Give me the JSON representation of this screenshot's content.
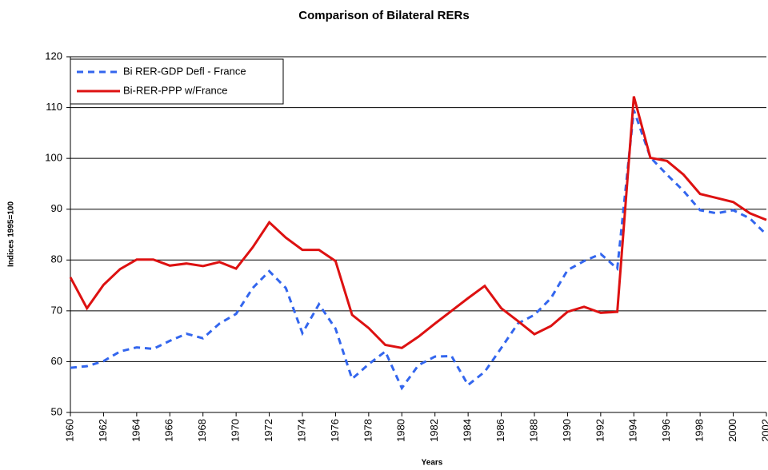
{
  "chart_data": {
    "type": "line",
    "title": "Comparison of Bilateral RERs",
    "x_label": "Years",
    "y_label": "Indices  1995=100",
    "x": [
      1960,
      1961,
      1962,
      1963,
      1964,
      1965,
      1966,
      1967,
      1968,
      1969,
      1970,
      1971,
      1972,
      1973,
      1974,
      1975,
      1976,
      1977,
      1978,
      1979,
      1980,
      1981,
      1982,
      1983,
      1984,
      1985,
      1986,
      1987,
      1988,
      1989,
      1990,
      1991,
      1992,
      1993,
      1994,
      1995,
      1996,
      1997,
      1998,
      1999,
      2000,
      2001,
      2002
    ],
    "series": [
      {
        "name": "Bi RER-GDP Defl - France",
        "color": "#3366ee",
        "dashed": true,
        "values": [
          58.8,
          59.1,
          60.1,
          62.0,
          62.8,
          62.5,
          64.1,
          65.5,
          64.6,
          67.5,
          69.4,
          74.5,
          77.8,
          74.5,
          65.6,
          71.3,
          66.5,
          56.6,
          59.5,
          62.0,
          54.8,
          59.3,
          61.0,
          61.1,
          55.4,
          58.0,
          62.7,
          67.5,
          69.2,
          72.5,
          78.0,
          79.8,
          81.2,
          78.3,
          109.5,
          100.2,
          96.8,
          93.6,
          89.8,
          89.2,
          89.8,
          88.2,
          85.0
        ]
      },
      {
        "name": "Bi-RER-PPP w/France",
        "color": "#dd1111",
        "dashed": false,
        "values": [
          76.6,
          70.5,
          75.1,
          78.2,
          80.1,
          80.1,
          78.9,
          79.3,
          78.8,
          79.6,
          78.3,
          82.5,
          87.4,
          84.4,
          82.0,
          82.0,
          79.8,
          69.2,
          66.6,
          63.3,
          62.7,
          64.9,
          67.5,
          70.0,
          72.5,
          74.9,
          70.5,
          68.0,
          65.4,
          67.0,
          69.8,
          70.8,
          69.6,
          69.8,
          112.2,
          100.1,
          99.5,
          96.8,
          93.0,
          92.2,
          91.4,
          89.2,
          87.9
        ]
      }
    ],
    "xlim": [
      1960,
      2002
    ],
    "xticks": [
      1960,
      1962,
      1964,
      1966,
      1968,
      1970,
      1972,
      1974,
      1976,
      1978,
      1980,
      1982,
      1984,
      1986,
      1988,
      1990,
      1992,
      1994,
      1996,
      1998,
      2000,
      2002
    ],
    "ylim": [
      50,
      120
    ],
    "yticks": [
      50,
      60,
      70,
      80,
      90,
      100,
      110,
      120
    ],
    "grid": true,
    "legend": "upper-left"
  }
}
